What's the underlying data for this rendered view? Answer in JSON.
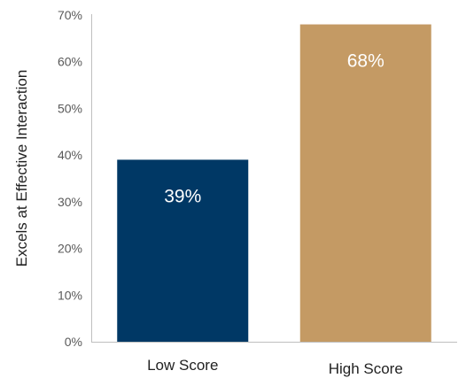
{
  "chart_data": {
    "type": "bar",
    "categories": [
      "Low Score",
      "High Score"
    ],
    "values": [
      39,
      68
    ],
    "data_labels": [
      "39%",
      "68%"
    ],
    "colors": [
      "#003865",
      "#C49A64"
    ],
    "ylabel": "Excels at Effective Interaction",
    "xlabel": "",
    "title": "",
    "ylim": [
      0,
      70
    ],
    "yticks": [
      0,
      10,
      20,
      30,
      40,
      50,
      60,
      70
    ],
    "ytick_labels": [
      "0%",
      "10%",
      "20%",
      "30%",
      "40%",
      "50%",
      "60%",
      "70%"
    ],
    "grid": false,
    "legend": "none"
  }
}
